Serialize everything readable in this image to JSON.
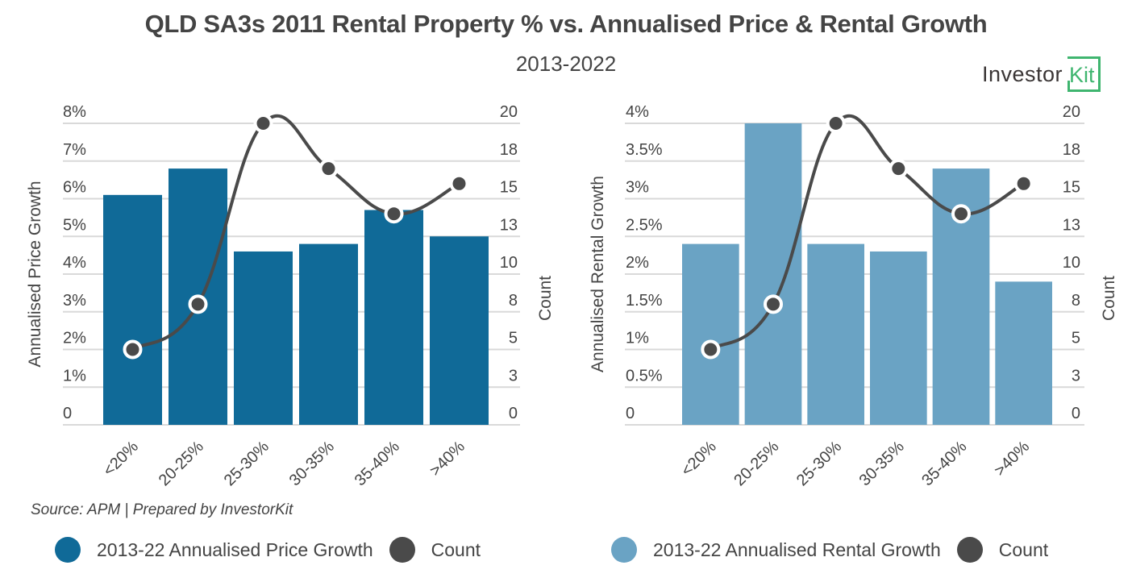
{
  "header": {
    "title": "QLD SA3s 2011 Rental Property % vs. Annualised Price & Rental Growth",
    "subtitle": "2013-2022",
    "logo_text": "Investor",
    "logo_box_text": "Kit"
  },
  "footer": {
    "source": "Source: APM | Prepared by InvestorKit"
  },
  "colors": {
    "price_bar": "#106a98",
    "rental_bar": "#6aa3c4",
    "count_line": "#4a4a4a",
    "grid": "#d9d9d9",
    "logo_accent": "#3fb56f"
  },
  "legends": [
    {
      "items": [
        {
          "label": "2013-22 Annualised Price Growth",
          "color": "#106a98"
        },
        {
          "label": "Count",
          "color": "#4a4a4a"
        }
      ]
    },
    {
      "items": [
        {
          "label": "2013-22 Annualised Rental Growth",
          "color": "#6aa3c4"
        },
        {
          "label": "Count",
          "color": "#4a4a4a"
        }
      ]
    }
  ],
  "chart_data": [
    {
      "type": "bar",
      "title": "",
      "categories": [
        "<20%",
        "20-25%",
        "25-30%",
        "30-35%",
        "35-40%",
        ">40%"
      ],
      "series": [
        {
          "name": "2013-22 Annualised Price Growth",
          "type": "bar",
          "axis": "left",
          "values": [
            6.1,
            6.8,
            4.6,
            4.8,
            5.7,
            5.0
          ],
          "color": "#106a98"
        },
        {
          "name": "Count",
          "type": "line",
          "axis": "right",
          "values": [
            5,
            8,
            20,
            17,
            14,
            16
          ],
          "color": "#4a4a4a"
        }
      ],
      "xlabel": "",
      "ylabel": "Annualised Price Growth",
      "y2label": "Count",
      "ylim": [
        0,
        8
      ],
      "y2lim": [
        0,
        20
      ],
      "yticks": [
        "0",
        "1%",
        "2%",
        "3%",
        "4%",
        "5%",
        "6%",
        "7%",
        "8%"
      ],
      "y2ticks": [
        "0",
        "3",
        "5",
        "8",
        "10",
        "13",
        "15",
        "18",
        "20"
      ],
      "grid": true,
      "legend": "bottom"
    },
    {
      "type": "bar",
      "title": "",
      "categories": [
        "<20%",
        "20-25%",
        "25-30%",
        "30-35%",
        "35-40%",
        ">40%"
      ],
      "series": [
        {
          "name": "2013-22 Annualised Rental Growth",
          "type": "bar",
          "axis": "left",
          "values": [
            2.4,
            4.0,
            2.4,
            2.3,
            3.4,
            1.9
          ],
          "color": "#6aa3c4"
        },
        {
          "name": "Count",
          "type": "line",
          "axis": "right",
          "values": [
            5,
            8,
            20,
            17,
            14,
            16
          ],
          "color": "#4a4a4a"
        }
      ],
      "xlabel": "",
      "ylabel": "Annualised Rental Growth",
      "y2label": "Count",
      "ylim": [
        0,
        4
      ],
      "y2lim": [
        0,
        20
      ],
      "yticks": [
        "0",
        "0.5%",
        "1%",
        "1.5%",
        "2%",
        "2.5%",
        "3%",
        "3.5%",
        "4%"
      ],
      "y2ticks": [
        "0",
        "3",
        "5",
        "8",
        "10",
        "13",
        "15",
        "18",
        "20"
      ],
      "grid": true,
      "legend": "bottom"
    }
  ]
}
